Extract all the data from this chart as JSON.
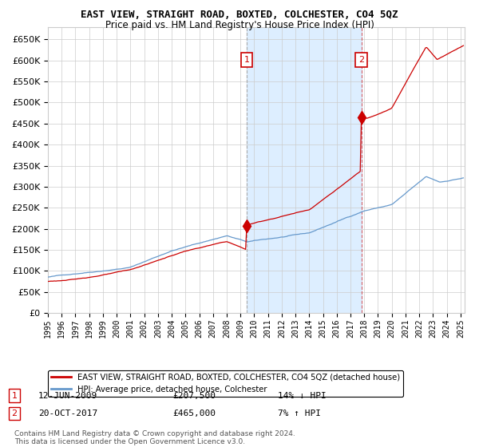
{
  "title": "EAST VIEW, STRAIGHT ROAD, BOXTED, COLCHESTER, CO4 5QZ",
  "subtitle": "Price paid vs. HM Land Registry's House Price Index (HPI)",
  "legend_line1": "EAST VIEW, STRAIGHT ROAD, BOXTED, COLCHESTER, CO4 5QZ (detached house)",
  "legend_line2": "HPI: Average price, detached house, Colchester",
  "annotation1_date": "12-JUN-2009",
  "annotation1_price": "£207,500",
  "annotation1_hpi": "14% ↓ HPI",
  "annotation2_date": "20-OCT-2017",
  "annotation2_price": "£465,000",
  "annotation2_hpi": "7% ↑ HPI",
  "footer1": "Contains HM Land Registry data © Crown copyright and database right 2024.",
  "footer2": "This data is licensed under the Open Government Licence v3.0.",
  "red_color": "#cc0000",
  "blue_color": "#6699cc",
  "shade_color": "#ddeeff",
  "grid_color": "#cccccc",
  "ylim_min": 0,
  "ylim_max": 680000,
  "sale1_year": 2009.45,
  "sale1_price": 207500,
  "sale2_year": 2017.8,
  "sale2_price": 465000
}
